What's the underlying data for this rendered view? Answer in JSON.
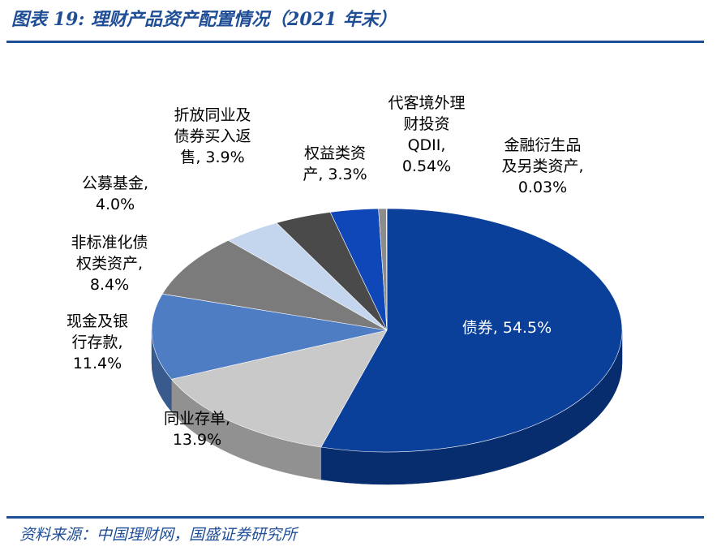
{
  "title": "图表 19:  理财产品资产配置情况（2021 年末）",
  "source": "资料来源：中国理财网，国盛证券研究所",
  "colors": {
    "accent": "#1f4e96"
  },
  "chart_data": {
    "type": "pie",
    "title": "",
    "slices": [
      {
        "label": "债券",
        "value": 54.5,
        "display": "54.5%",
        "color": "#0a3f9a",
        "label_lines": [
          "债券, 54.5%"
        ]
      },
      {
        "label": "同业存单",
        "value": 13.9,
        "display": "13.9%",
        "color": "#c9c9c9",
        "label_lines": [
          "同业存单,",
          "13.9%"
        ]
      },
      {
        "label": "现金及银行存款",
        "value": 11.4,
        "display": "11.4%",
        "color": "#4f7dc4",
        "label_lines": [
          "现金及银",
          "行存款,",
          "11.4%"
        ]
      },
      {
        "label": "非标准化债权类资产",
        "value": 8.4,
        "display": "8.4%",
        "color": "#7b7b7b",
        "label_lines": [
          "非标准化债",
          "权类资产,",
          "8.4%"
        ]
      },
      {
        "label": "公募基金",
        "value": 4.0,
        "display": "4.0%",
        "color": "#c4d5ee",
        "label_lines": [
          "公募基金,",
          "4.0%"
        ]
      },
      {
        "label": "折放同业及债券买入返售",
        "value": 3.9,
        "display": "3.9%",
        "color": "#4a4a4a",
        "label_lines": [
          "折放同业及",
          "债券买入返",
          "售, 3.9%"
        ]
      },
      {
        "label": "权益类资产",
        "value": 3.3,
        "display": "3.3%",
        "color": "#0f47b8",
        "label_lines": [
          "权益类资",
          "产, 3.3%"
        ]
      },
      {
        "label": "代客境外理财投资QDII",
        "value": 0.54,
        "display": "0.54%",
        "color": "#8c8c8c",
        "label_lines": [
          "代客境外理",
          "财投资",
          "QDII,",
          "0.54%"
        ]
      },
      {
        "label": "金融衍生品及另类资产",
        "value": 0.03,
        "display": "0.03%",
        "color": "#1a1a1a",
        "label_lines": [
          "金融衍生品",
          "及另类资产,",
          "0.03%"
        ]
      }
    ]
  }
}
